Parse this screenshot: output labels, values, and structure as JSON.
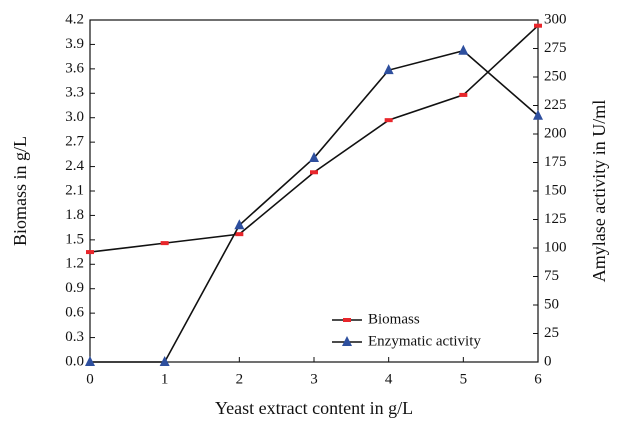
{
  "chart_data": {
    "type": "line",
    "x_label": "Yeast extract content in g/L",
    "y_label": "Biomass in g/L",
    "y2_label": "Amylase activity in U/ml",
    "x": [
      0,
      1,
      2,
      3,
      4,
      5,
      6
    ],
    "xlim": [
      0,
      6
    ],
    "xticks": [
      0,
      1,
      2,
      3,
      4,
      5,
      6
    ],
    "ylim": [
      0,
      4.2
    ],
    "yticks": [
      {
        "value": 0,
        "label": "0.0"
      },
      0.3,
      0.6,
      0.9,
      1.2,
      1.5,
      1.8,
      2.1,
      2.4,
      2.7,
      {
        "value": 3,
        "label": "3.0"
      },
      3.3,
      3.6,
      3.9,
      4.2
    ],
    "y2lim": [
      0,
      300
    ],
    "y2ticks": [
      0,
      25,
      50,
      75,
      100,
      125,
      150,
      175,
      200,
      225,
      250,
      275,
      300
    ],
    "legend": "lower right",
    "series": [
      {
        "name": "Biomass",
        "color": "#e8262b",
        "marker": "square",
        "values": [
          1.35,
          1.46,
          1.57,
          2.33,
          2.97,
          3.28,
          4.13
        ]
      },
      {
        "name": "Enzymatic activity",
        "color": "#2e4f9e",
        "marker": "triangle",
        "axis": "y2",
        "values": [
          0,
          0,
          120,
          179,
          256,
          273,
          216
        ]
      }
    ]
  }
}
